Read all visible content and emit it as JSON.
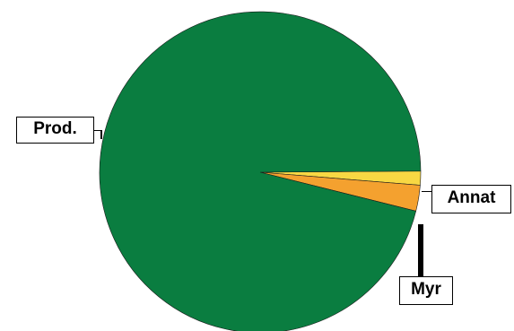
{
  "chart_data": {
    "type": "pie",
    "title": "",
    "slices": [
      {
        "label": "Prod.",
        "value": 96.0,
        "color": "#0a7d40"
      },
      {
        "label": "Myr",
        "value": 2.6,
        "color": "#f4a12f"
      },
      {
        "label": "Annat",
        "value": 1.4,
        "color": "#f8d843"
      }
    ],
    "start_angle_deg": 0,
    "direction": "clockwise-from-east-upward",
    "legend": "none"
  }
}
